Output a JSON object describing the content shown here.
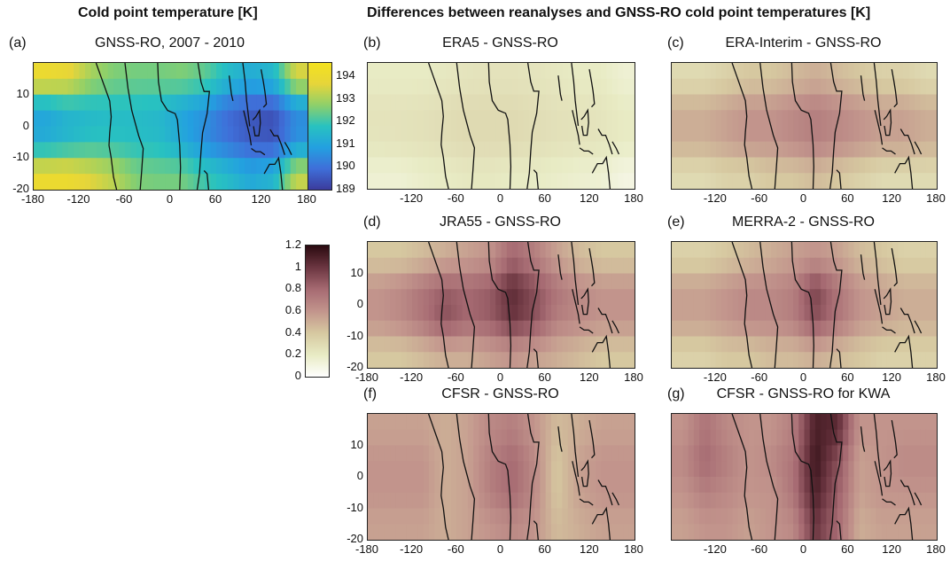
{
  "headers": {
    "left": "Cold point temperature [K]",
    "right": "Differences between reanalyses and GNSS-RO cold point temperatures [K]"
  },
  "palettes": {
    "temperature": [
      "#3b3b9c",
      "#3f6fd9",
      "#23a0e0",
      "#28c2c0",
      "#8ed06a",
      "#e6d53a",
      "#f4e21f"
    ],
    "difference": [
      "#ffffff",
      "#e8ebc4",
      "#d6c8a0",
      "#c2948c",
      "#a66a72",
      "#6b3540",
      "#2a0a10"
    ]
  },
  "colorbars": {
    "temperature": {
      "ticks": [
        "194",
        "193",
        "192",
        "191",
        "190",
        "189"
      ],
      "range": [
        189,
        194.6
      ]
    },
    "difference": {
      "ticks": [
        "1.2",
        "1",
        "0.8",
        "0.6",
        "0.4",
        "0.2",
        "0"
      ],
      "range": [
        0,
        1.2
      ]
    }
  },
  "chart_data": [
    {
      "id": "a",
      "type": "heatmap",
      "label": "(a)",
      "title": "GNSS-RO, 2007 - 2010",
      "xlim": [
        -180,
        180
      ],
      "ylim": [
        -20,
        20
      ],
      "xticks": [
        "-180",
        "-120",
        "-60",
        "0",
        "60",
        "120",
        "180"
      ],
      "yticks": [
        "10",
        "0",
        "-10",
        "-20"
      ],
      "colorbar": "temperature",
      "x": [
        -165,
        -135,
        -105,
        -75,
        -45,
        -15,
        15,
        45,
        75,
        105,
        135,
        165
      ],
      "y": [
        15,
        5,
        -5,
        -15
      ],
      "z": [
        [
          194,
          193.8,
          193,
          192.6,
          192.5,
          192.5,
          192.6,
          192.3,
          191.6,
          191.2,
          191.5,
          193.5
        ],
        [
          191,
          191.4,
          191.5,
          191.6,
          191.6,
          191.5,
          191,
          190.6,
          189.9,
          189.5,
          189.4,
          190.5
        ],
        [
          191.2,
          191.5,
          191.8,
          191.8,
          191.7,
          191.6,
          191.1,
          190.5,
          190,
          189.6,
          189.5,
          190.6
        ],
        [
          194,
          194,
          193.6,
          193.2,
          192.6,
          192.5,
          192.5,
          192,
          191.6,
          191.1,
          191.4,
          193.3
        ]
      ]
    },
    {
      "id": "b",
      "type": "heatmap",
      "label": "(b)",
      "title": "ERA5 - GNSS-RO",
      "xlim": [
        -180,
        180
      ],
      "ylim": [
        -20,
        20
      ],
      "xticks": [
        "-120",
        "-60",
        "0",
        "60",
        "120",
        "180"
      ],
      "yticks": [],
      "colorbar": "difference",
      "x": [
        -165,
        -135,
        -105,
        -75,
        -45,
        -15,
        15,
        45,
        75,
        105,
        135,
        165
      ],
      "y": [
        15,
        5,
        -5,
        -15
      ],
      "z": [
        [
          0.2,
          0.2,
          0.2,
          0.22,
          0.24,
          0.25,
          0.25,
          0.24,
          0.22,
          0.2,
          0.2,
          0.15
        ],
        [
          0.25,
          0.25,
          0.26,
          0.28,
          0.3,
          0.3,
          0.3,
          0.28,
          0.26,
          0.25,
          0.24,
          0.2
        ],
        [
          0.24,
          0.25,
          0.26,
          0.28,
          0.3,
          0.3,
          0.3,
          0.28,
          0.26,
          0.25,
          0.24,
          0.2
        ],
        [
          0.15,
          0.15,
          0.18,
          0.2,
          0.22,
          0.22,
          0.2,
          0.2,
          0.18,
          0.16,
          0.15,
          0.1
        ]
      ]
    },
    {
      "id": "c",
      "type": "heatmap",
      "label": "(c)",
      "title": "ERA-Interim - GNSS-RO",
      "xlim": [
        -180,
        180
      ],
      "ylim": [
        -20,
        20
      ],
      "xticks": [
        "-120",
        "-60",
        "0",
        "60",
        "120",
        "180"
      ],
      "yticks": [],
      "colorbar": "difference",
      "x": [
        -165,
        -135,
        -105,
        -75,
        -45,
        -15,
        15,
        45,
        75,
        105,
        135,
        165
      ],
      "y": [
        15,
        5,
        -5,
        -15
      ],
      "z": [
        [
          0.3,
          0.3,
          0.35,
          0.4,
          0.4,
          0.45,
          0.5,
          0.45,
          0.4,
          0.35,
          0.35,
          0.3
        ],
        [
          0.5,
          0.5,
          0.55,
          0.6,
          0.6,
          0.65,
          0.7,
          0.65,
          0.6,
          0.55,
          0.55,
          0.5
        ],
        [
          0.5,
          0.5,
          0.55,
          0.6,
          0.6,
          0.65,
          0.7,
          0.65,
          0.6,
          0.55,
          0.55,
          0.5
        ],
        [
          0.3,
          0.3,
          0.35,
          0.35,
          0.4,
          0.4,
          0.45,
          0.4,
          0.35,
          0.3,
          0.3,
          0.3
        ]
      ]
    },
    {
      "id": "d",
      "type": "heatmap",
      "label": "(d)",
      "title": "JRA55 - GNSS-RO",
      "xlim": [
        -180,
        180
      ],
      "ylim": [
        -20,
        20
      ],
      "xticks": [
        "-180",
        "-120",
        "-60",
        "0",
        "60",
        "120",
        "180"
      ],
      "yticks": [
        "10",
        "0",
        "-10",
        "-20"
      ],
      "colorbar": "difference",
      "x": [
        -165,
        -135,
        -105,
        -75,
        -45,
        -15,
        15,
        45,
        75,
        105,
        135,
        165
      ],
      "y": [
        15,
        5,
        -5,
        -15
      ],
      "z": [
        [
          0.4,
          0.4,
          0.45,
          0.5,
          0.55,
          0.6,
          0.8,
          0.7,
          0.55,
          0.45,
          0.4,
          0.4
        ],
        [
          0.6,
          0.65,
          0.75,
          0.85,
          0.8,
          0.85,
          1.05,
          0.9,
          0.75,
          0.65,
          0.6,
          0.6
        ],
        [
          0.6,
          0.65,
          0.75,
          0.9,
          0.8,
          0.85,
          1.0,
          0.9,
          0.7,
          0.65,
          0.6,
          0.6
        ],
        [
          0.4,
          0.4,
          0.45,
          0.5,
          0.5,
          0.55,
          0.6,
          0.55,
          0.5,
          0.45,
          0.4,
          0.4
        ]
      ]
    },
    {
      "id": "e",
      "type": "heatmap",
      "label": "(e)",
      "title": "MERRA-2 - GNSS-RO",
      "xlim": [
        -180,
        180
      ],
      "ylim": [
        -20,
        20
      ],
      "xticks": [
        "-120",
        "-60",
        "0",
        "60",
        "120",
        "180"
      ],
      "yticks": [],
      "colorbar": "difference",
      "x": [
        -165,
        -135,
        -105,
        -75,
        -45,
        -15,
        15,
        45,
        75,
        105,
        135,
        165
      ],
      "y": [
        15,
        5,
        -5,
        -15
      ],
      "z": [
        [
          0.35,
          0.35,
          0.4,
          0.45,
          0.5,
          0.55,
          0.6,
          0.55,
          0.45,
          0.4,
          0.35,
          0.35
        ],
        [
          0.55,
          0.55,
          0.6,
          0.65,
          0.65,
          0.7,
          0.95,
          0.75,
          0.6,
          0.55,
          0.5,
          0.5
        ],
        [
          0.55,
          0.55,
          0.6,
          0.65,
          0.65,
          0.7,
          0.9,
          0.75,
          0.6,
          0.55,
          0.5,
          0.5
        ],
        [
          0.35,
          0.35,
          0.4,
          0.4,
          0.45,
          0.45,
          0.5,
          0.45,
          0.4,
          0.35,
          0.35,
          0.35
        ]
      ]
    },
    {
      "id": "f",
      "type": "heatmap",
      "label": "(f)",
      "title": "CFSR - GNSS-RO",
      "xlim": [
        -180,
        180
      ],
      "ylim": [
        -20,
        20
      ],
      "xticks": [
        "-180",
        "-120",
        "-60",
        "0",
        "60",
        "120",
        "180"
      ],
      "yticks": [
        "10",
        "0",
        "-10",
        "-20"
      ],
      "colorbar": "difference",
      "x": [
        -165,
        -135,
        -105,
        -75,
        -45,
        -15,
        15,
        45,
        75,
        105,
        135,
        165
      ],
      "y": [
        15,
        5,
        -5,
        -15
      ],
      "z": [
        [
          0.55,
          0.55,
          0.55,
          0.5,
          0.55,
          0.65,
          0.7,
          0.6,
          0.45,
          0.5,
          0.55,
          0.55
        ],
        [
          0.6,
          0.6,
          0.6,
          0.5,
          0.55,
          0.7,
          0.8,
          0.65,
          0.4,
          0.55,
          0.6,
          0.6
        ],
        [
          0.6,
          0.6,
          0.6,
          0.5,
          0.55,
          0.7,
          0.8,
          0.65,
          0.4,
          0.55,
          0.6,
          0.6
        ],
        [
          0.55,
          0.55,
          0.55,
          0.5,
          0.55,
          0.6,
          0.65,
          0.6,
          0.45,
          0.5,
          0.55,
          0.55
        ]
      ]
    },
    {
      "id": "g",
      "type": "heatmap",
      "label": "(g)",
      "title": "CFSR - GNSS-RO for KWA",
      "xlim": [
        -180,
        180
      ],
      "ylim": [
        -20,
        20
      ],
      "xticks": [
        "-120",
        "-60",
        "0",
        "60",
        "120",
        "180"
      ],
      "yticks": [],
      "colorbar": "difference",
      "x": [
        -165,
        -135,
        -105,
        -75,
        -45,
        -15,
        15,
        45,
        75,
        105,
        135,
        165
      ],
      "y": [
        15,
        5,
        -5,
        -15
      ],
      "z": [
        [
          0.6,
          0.75,
          0.65,
          0.6,
          0.6,
          0.7,
          1.1,
          1.05,
          0.6,
          0.6,
          0.6,
          0.6
        ],
        [
          0.65,
          0.8,
          0.7,
          0.6,
          0.65,
          0.75,
          1.15,
          0.9,
          0.55,
          0.6,
          0.65,
          0.65
        ],
        [
          0.6,
          0.7,
          0.65,
          0.6,
          0.6,
          0.75,
          1.1,
          0.85,
          0.55,
          0.6,
          0.6,
          0.6
        ],
        [
          0.55,
          0.6,
          0.6,
          0.55,
          0.6,
          0.65,
          1.0,
          0.8,
          0.5,
          0.55,
          0.55,
          0.55
        ]
      ]
    }
  ]
}
